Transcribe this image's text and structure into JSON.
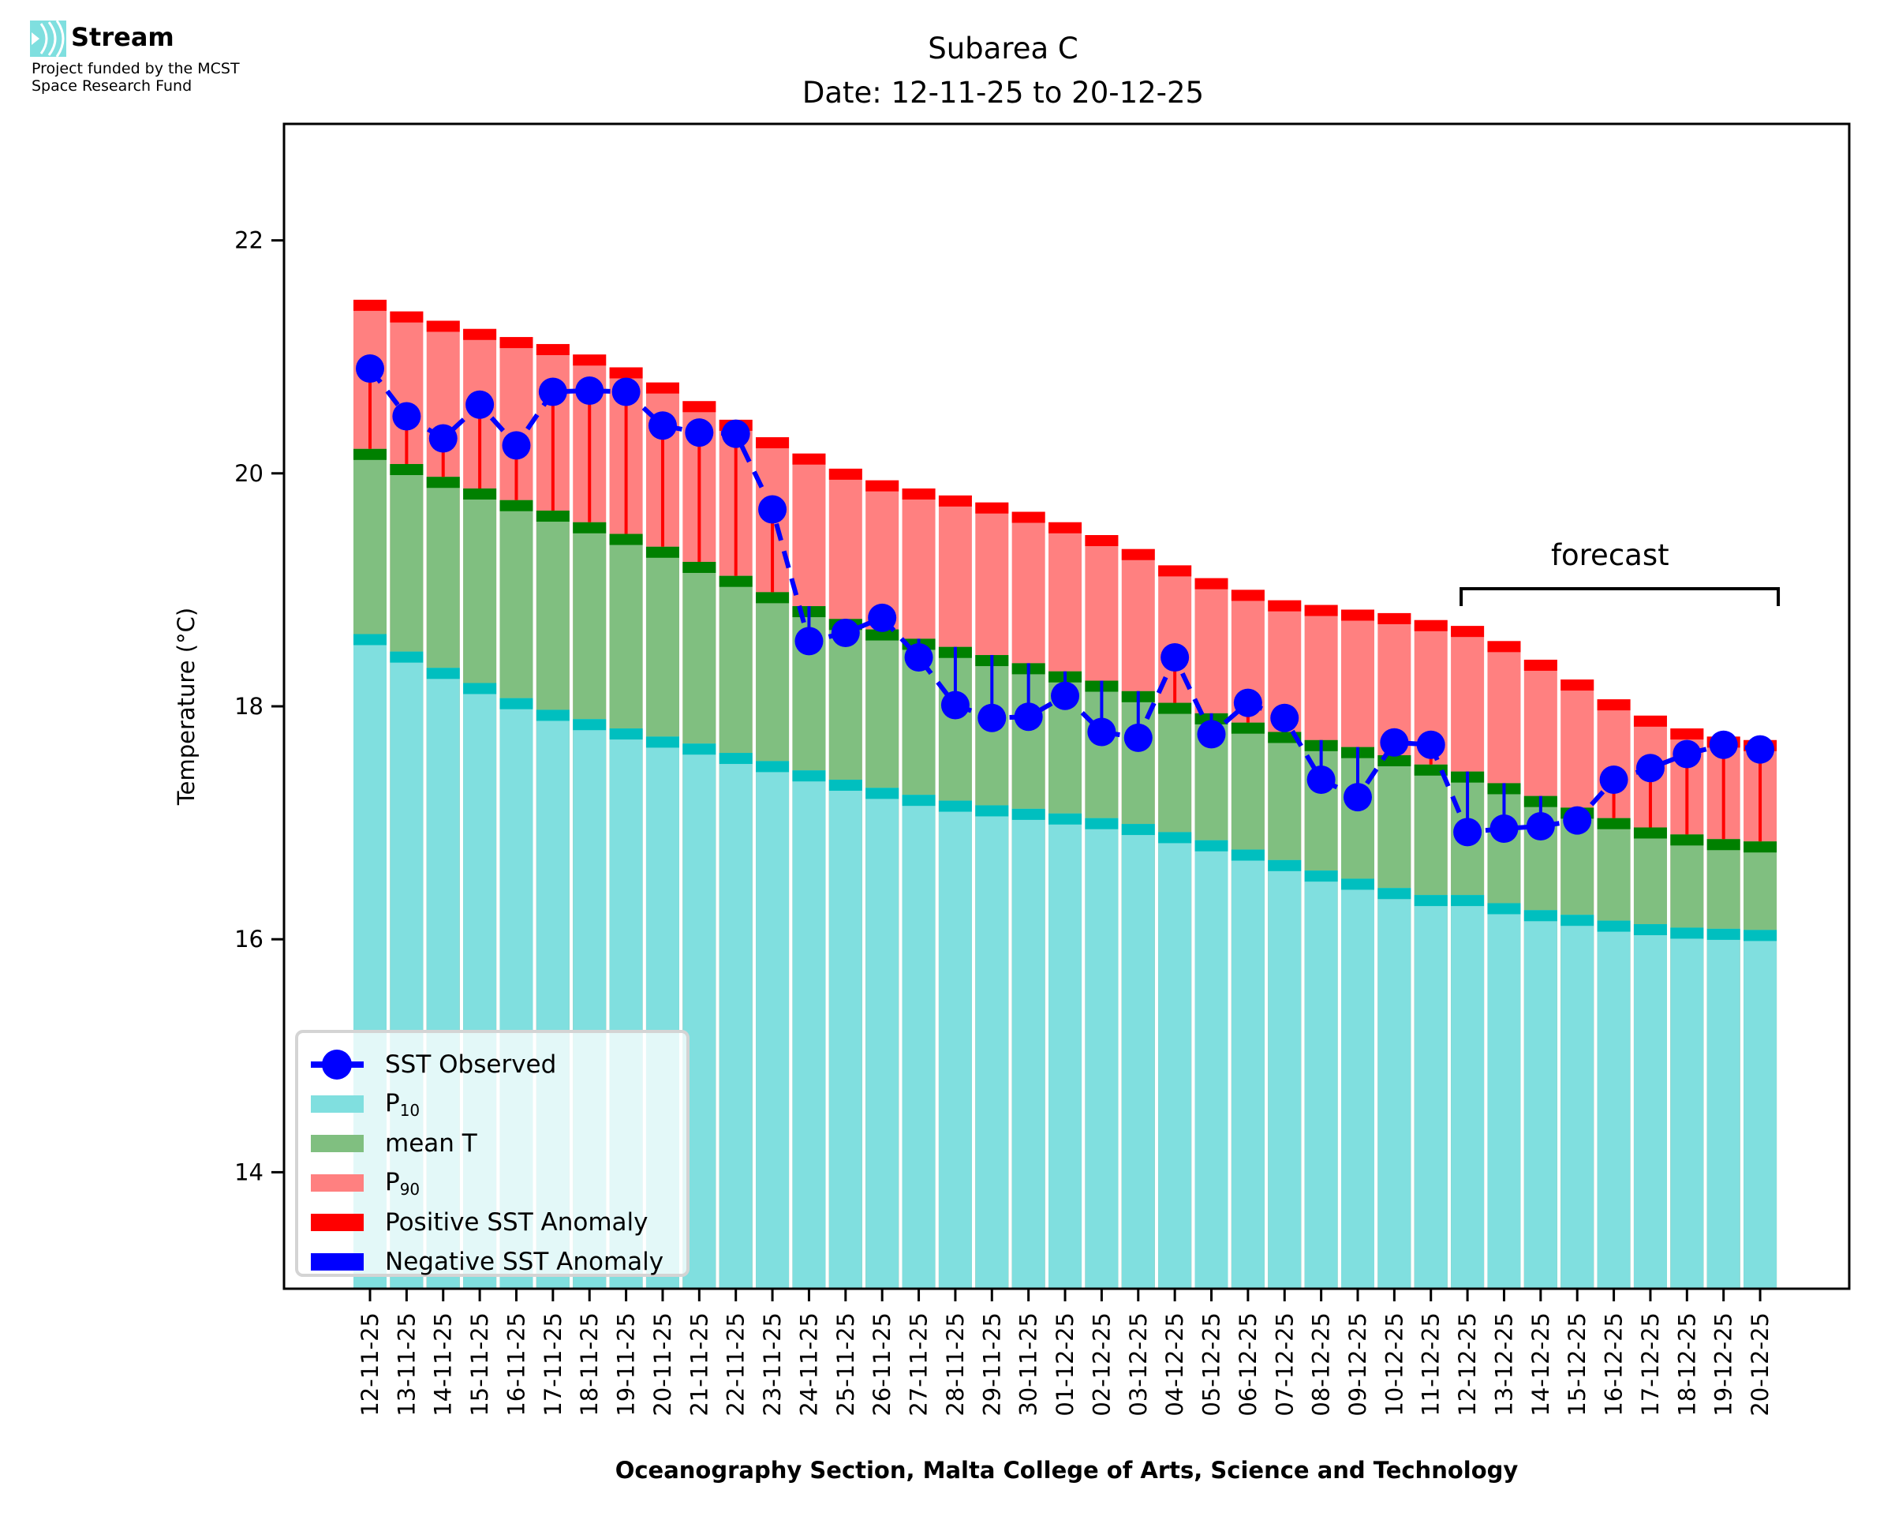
{
  "header": {
    "logo_name": "Stream",
    "logo_icon": "stream-waves-icon",
    "funding_line1": "Project funded by the MCST",
    "funding_line2": "Space Research Fund"
  },
  "chart_data": {
    "type": "bar",
    "title": "Subarea C",
    "subtitle": "Date: 12-11-25 to 20-12-25",
    "xlabel": "Oceanography Section, Malta College of Arts, Science and Technology",
    "ylabel": "Temperature (°C)",
    "ylim": [
      13,
      23
    ],
    "yticks": [
      14,
      16,
      18,
      20,
      22
    ],
    "grid": false,
    "legend_position": "lower-left",
    "categories": [
      "12-11-25",
      "13-11-25",
      "14-11-25",
      "15-11-25",
      "16-11-25",
      "17-11-25",
      "18-11-25",
      "19-11-25",
      "20-11-25",
      "21-11-25",
      "22-11-25",
      "23-11-25",
      "24-11-25",
      "25-11-25",
      "26-11-25",
      "27-11-25",
      "28-11-25",
      "29-11-25",
      "30-11-25",
      "01-12-25",
      "02-12-25",
      "03-12-25",
      "04-12-25",
      "05-12-25",
      "06-12-25",
      "07-12-25",
      "08-12-25",
      "09-12-25",
      "10-12-25",
      "11-12-25",
      "12-12-25",
      "13-12-25",
      "14-12-25",
      "15-12-25",
      "16-12-25",
      "17-12-25",
      "18-12-25",
      "19-12-25",
      "20-12-25"
    ],
    "series": [
      {
        "name": "P10",
        "label_main": "P",
        "label_sub": "10",
        "color": "#80dfdf",
        "band_color": "#00bfbf",
        "values": [
          18.62,
          18.47,
          18.33,
          18.2,
          18.07,
          17.97,
          17.89,
          17.81,
          17.74,
          17.68,
          17.6,
          17.53,
          17.45,
          17.37,
          17.3,
          17.24,
          17.19,
          17.15,
          17.12,
          17.08,
          17.04,
          16.99,
          16.92,
          16.85,
          16.77,
          16.68,
          16.59,
          16.52,
          16.44,
          16.38,
          16.38,
          16.31,
          16.25,
          16.21,
          16.16,
          16.13,
          16.1,
          16.09,
          16.08
        ]
      },
      {
        "name": "mean T",
        "color": "#80bf80",
        "band_color": "#008000",
        "values": [
          20.21,
          20.08,
          19.97,
          19.87,
          19.77,
          19.68,
          19.58,
          19.48,
          19.37,
          19.24,
          19.12,
          18.98,
          18.86,
          18.75,
          18.66,
          18.58,
          18.51,
          18.44,
          18.37,
          18.3,
          18.22,
          18.13,
          18.03,
          17.94,
          17.86,
          17.78,
          17.71,
          17.65,
          17.58,
          17.5,
          17.44,
          17.34,
          17.23,
          17.13,
          17.04,
          16.96,
          16.9,
          16.86,
          16.84
        ]
      },
      {
        "name": "P90",
        "label_main": "P",
        "label_sub": "90",
        "color": "#ff8080",
        "band_color": "#ff0000",
        "values": [
          21.49,
          21.39,
          21.31,
          21.24,
          21.17,
          21.11,
          21.02,
          20.91,
          20.78,
          20.62,
          20.46,
          20.31,
          20.17,
          20.04,
          19.94,
          19.87,
          19.81,
          19.75,
          19.67,
          19.58,
          19.47,
          19.35,
          19.21,
          19.1,
          19.0,
          18.91,
          18.87,
          18.83,
          18.8,
          18.74,
          18.69,
          18.56,
          18.4,
          18.23,
          18.06,
          17.92,
          17.81,
          17.74,
          17.71
        ]
      },
      {
        "name": "SST Observed",
        "color": "#0000ff",
        "style": "dashed-line-with-circle-markers",
        "values": [
          20.9,
          20.49,
          20.3,
          20.59,
          20.24,
          20.7,
          20.71,
          20.7,
          20.41,
          20.35,
          20.34,
          19.69,
          18.56,
          18.63,
          18.76,
          18.42,
          18.01,
          17.9,
          17.91,
          18.09,
          17.78,
          17.73,
          18.42,
          17.76,
          18.03,
          17.9,
          17.37,
          17.22,
          17.69,
          17.67,
          16.92,
          16.95,
          16.97,
          17.02,
          17.37,
          17.47,
          17.59,
          17.67,
          17.63
        ]
      }
    ],
    "anomaly": {
      "positive_label": "Positive SST Anomaly",
      "positive_color": "#ff0000",
      "negative_label": "Negative SST Anomaly",
      "negative_color": "#0000ff",
      "reference_series": "mean T"
    },
    "annotation": {
      "text": "forecast",
      "start_category": "12-12-25",
      "end_category": "20-12-25"
    }
  }
}
